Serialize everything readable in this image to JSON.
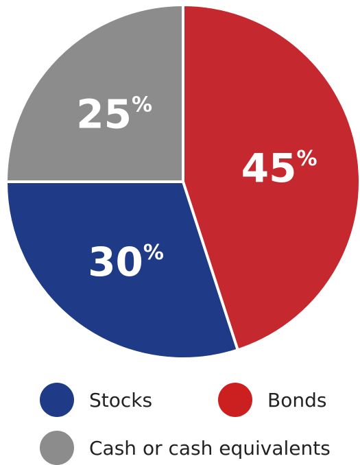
{
  "chart_data": {
    "type": "pie",
    "title": "",
    "slices": [
      {
        "name": "Bonds",
        "value": 45,
        "label": "45",
        "unit": "%",
        "color": "#c6282f"
      },
      {
        "name": "Stocks",
        "value": 30,
        "label": "30",
        "unit": "%",
        "color": "#1f3b87"
      },
      {
        "name": "Cash or cash equivalents",
        "value": 25,
        "label": "25",
        "unit": "%",
        "color": "#8c8c8c"
      }
    ],
    "start_angle_deg": 0,
    "direction": "clockwise",
    "legend_position": "bottom"
  },
  "legend": {
    "items": [
      {
        "label": "Stocks",
        "color": "#1f3b87"
      },
      {
        "label": "Bonds",
        "color": "#cc1f1f"
      },
      {
        "label": "Cash or cash equivalents",
        "color": "#8c8c8c"
      }
    ]
  }
}
